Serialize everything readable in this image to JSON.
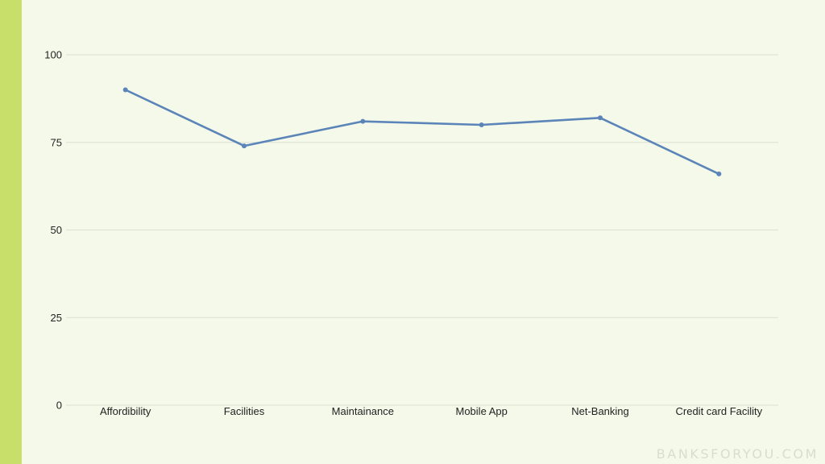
{
  "colors": {
    "background": "#f5f9ea",
    "accent_bar": "#c8e06a",
    "line": "#5b84b8",
    "grid": "#dcdfd2"
  },
  "watermark": "BANKSFORYOU.COM",
  "chart_data": {
    "type": "line",
    "categories": [
      "Affordibility",
      "Facilities",
      "Maintainance",
      "Mobile App",
      "Net-Banking",
      "Credit card Facility"
    ],
    "series": [
      {
        "values": [
          90,
          74,
          81,
          80,
          82,
          66
        ]
      }
    ],
    "title": "",
    "xlabel": "",
    "ylabel": "",
    "ylim": [
      0,
      100
    ],
    "yticks": [
      0,
      25,
      50,
      75,
      100
    ],
    "grid": "horizontal",
    "legend": "none"
  }
}
